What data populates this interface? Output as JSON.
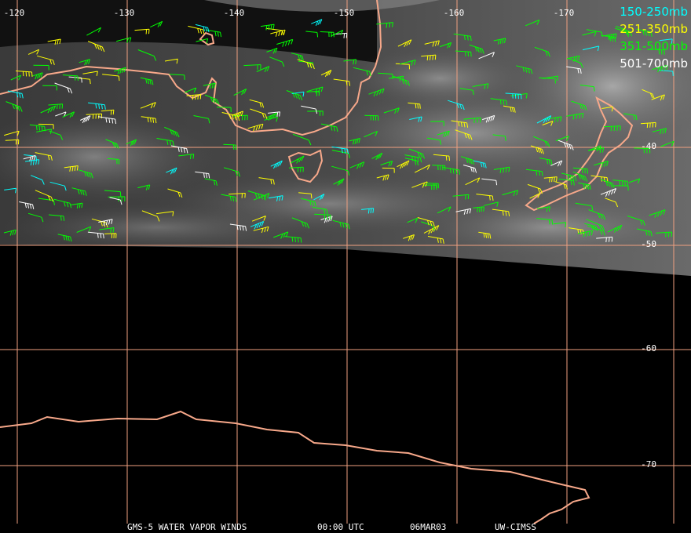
{
  "map": {
    "longitude_labels": [
      "-120",
      "-130",
      "-140",
      "-150",
      "-160",
      "-170"
    ],
    "latitude_labels": [
      "-40",
      "-50",
      "-60",
      "-70"
    ],
    "legend": [
      {
        "label": "150-250mb",
        "color": "#00ffff"
      },
      {
        "label": "251-350mb",
        "color": "#ffff00"
      },
      {
        "label": "351-500mb",
        "color": "#00ff00"
      },
      {
        "label": "501-700mb",
        "color": "#ffffff"
      }
    ],
    "footer": [
      "GMS-5 WATER VAPOR WINDS",
      "00:00 UTC",
      "06MAR03",
      "UW-CIMSS"
    ]
  }
}
